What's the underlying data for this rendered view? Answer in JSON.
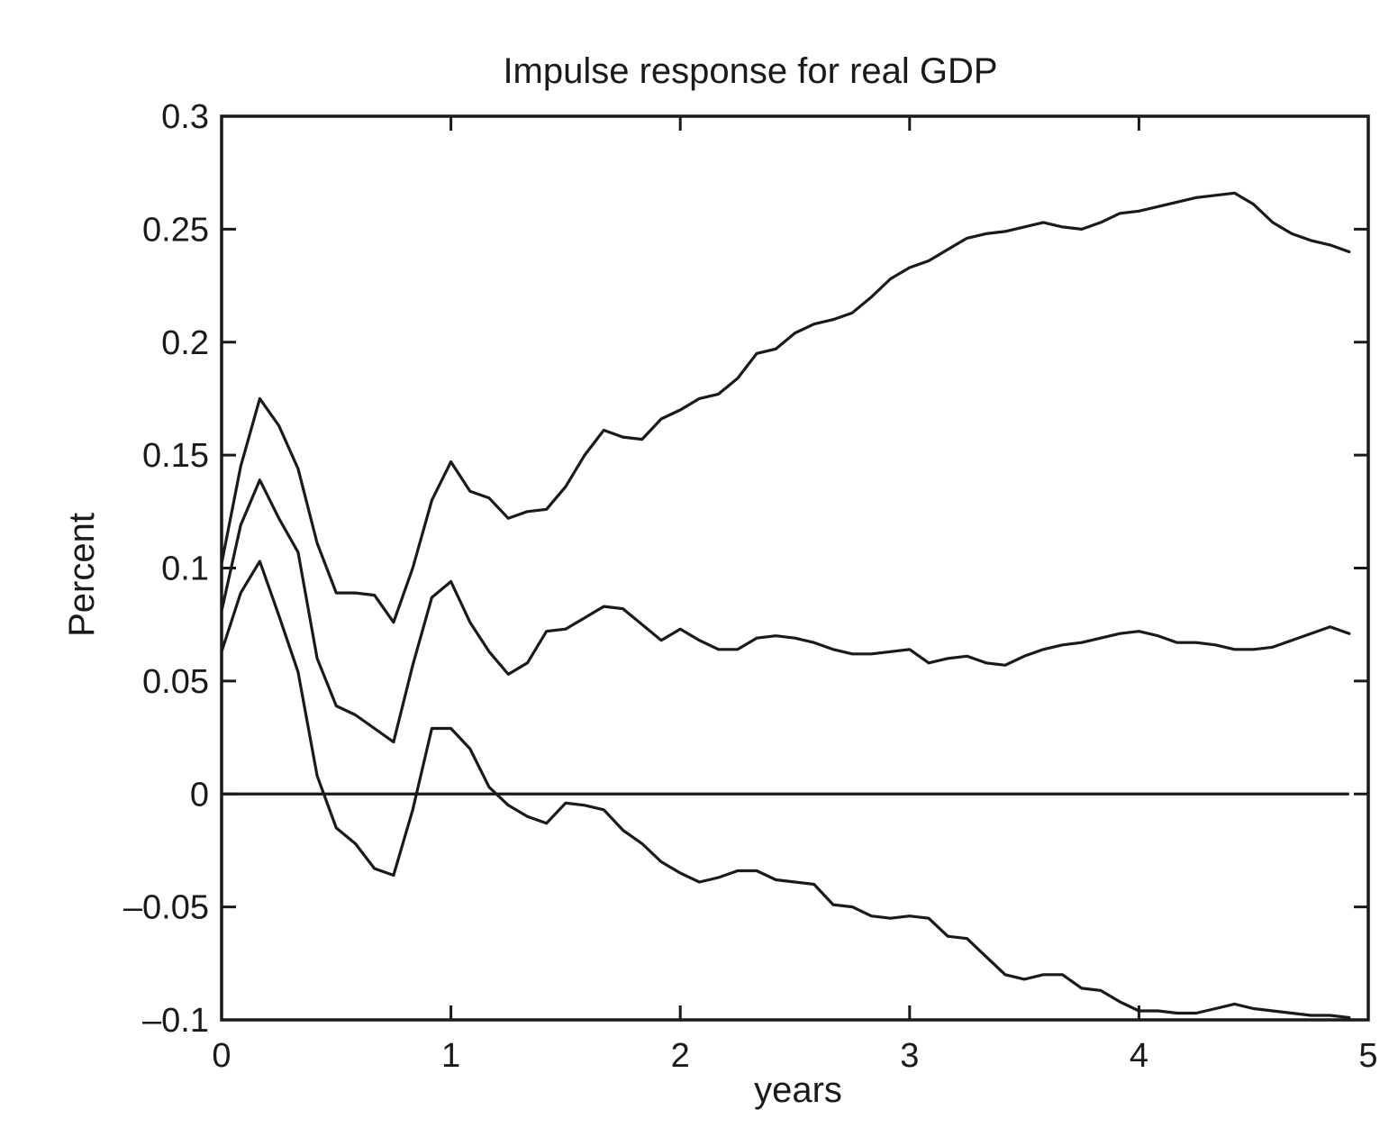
{
  "chart_data": {
    "type": "line",
    "title": "Impulse response for real GDP",
    "xlabel": "years",
    "ylabel": "Percent",
    "xlim": [
      0,
      5
    ],
    "ylim": [
      -0.1,
      0.3
    ],
    "xticks": [
      0,
      1,
      2,
      3,
      4,
      5
    ],
    "xtick_labels": [
      "0",
      "1",
      "2",
      "3",
      "4",
      "5"
    ],
    "yticks": [
      0.3,
      0.25,
      0.2,
      0.15,
      0.1,
      0.05,
      0,
      -0.05,
      -0.1
    ],
    "ytick_labels": [
      "0.3",
      "0.25",
      "0.2",
      "0.15",
      "0.1",
      "0.05",
      "0",
      "–0.05",
      "–0.1"
    ],
    "grid": false,
    "legend": "none",
    "zero_line": true,
    "x": [
      0,
      0.0833,
      0.1667,
      0.25,
      0.3333,
      0.4167,
      0.5,
      0.5833,
      0.6667,
      0.75,
      0.8333,
      0.9167,
      1.0,
      1.0833,
      1.1667,
      1.25,
      1.3333,
      1.4167,
      1.5,
      1.5833,
      1.6667,
      1.75,
      1.8333,
      1.9167,
      2.0,
      2.0833,
      2.1667,
      2.25,
      2.3333,
      2.4167,
      2.5,
      2.5833,
      2.6667,
      2.75,
      2.8333,
      2.9167,
      3.0,
      3.0833,
      3.1667,
      3.25,
      3.3333,
      3.4167,
      3.5,
      3.5833,
      3.6667,
      3.75,
      3.8333,
      3.9167,
      4.0,
      4.0833,
      4.1667,
      4.25,
      4.3333,
      4.4167,
      4.5,
      4.5833,
      4.6667,
      4.75,
      4.8333,
      4.9167
    ],
    "series": [
      {
        "values": [
          0.102,
          0.145,
          0.175,
          0.163,
          0.144,
          0.111,
          0.089,
          0.089,
          0.088,
          0.076,
          0.1,
          0.13,
          0.147,
          0.134,
          0.131,
          0.122,
          0.125,
          0.126,
          0.136,
          0.15,
          0.161,
          0.158,
          0.157,
          0.166,
          0.17,
          0.175,
          0.177,
          0.184,
          0.195,
          0.197,
          0.204,
          0.208,
          0.21,
          0.213,
          0.22,
          0.228,
          0.233,
          0.236,
          0.241,
          0.246,
          0.248,
          0.249,
          0.251,
          0.253,
          0.251,
          0.25,
          0.253,
          0.257,
          0.258,
          0.26,
          0.262,
          0.264,
          0.265,
          0.266,
          0.261,
          0.253,
          0.248,
          0.245,
          0.243,
          0.24
        ]
      },
      {
        "values": [
          0.081,
          0.119,
          0.139,
          0.122,
          0.107,
          0.06,
          0.039,
          0.035,
          0.029,
          0.023,
          0.057,
          0.087,
          0.094,
          0.076,
          0.063,
          0.053,
          0.058,
          0.072,
          0.073,
          0.078,
          0.083,
          0.082,
          0.075,
          0.068,
          0.073,
          0.068,
          0.064,
          0.064,
          0.069,
          0.07,
          0.069,
          0.067,
          0.064,
          0.062,
          0.062,
          0.063,
          0.064,
          0.058,
          0.06,
          0.061,
          0.058,
          0.057,
          0.061,
          0.064,
          0.066,
          0.067,
          0.069,
          0.071,
          0.072,
          0.07,
          0.067,
          0.067,
          0.066,
          0.064,
          0.064,
          0.065,
          0.068,
          0.071,
          0.074,
          0.071
        ]
      },
      {
        "values": [
          0.063,
          0.089,
          0.103,
          0.079,
          0.054,
          0.008,
          -0.015,
          -0.022,
          -0.033,
          -0.036,
          -0.007,
          0.029,
          0.029,
          0.02,
          0.003,
          -0.005,
          -0.01,
          -0.013,
          -0.004,
          -0.005,
          -0.007,
          -0.016,
          -0.022,
          -0.03,
          -0.035,
          -0.039,
          -0.037,
          -0.034,
          -0.034,
          -0.038,
          -0.039,
          -0.04,
          -0.049,
          -0.05,
          -0.054,
          -0.055,
          -0.054,
          -0.055,
          -0.063,
          -0.064,
          -0.072,
          -0.08,
          -0.082,
          -0.08,
          -0.08,
          -0.086,
          -0.087,
          -0.092,
          -0.096,
          -0.096,
          -0.097,
          -0.097,
          -0.095,
          -0.093,
          -0.095,
          -0.096,
          -0.097,
          -0.098,
          -0.098,
          -0.099
        ]
      }
    ]
  }
}
